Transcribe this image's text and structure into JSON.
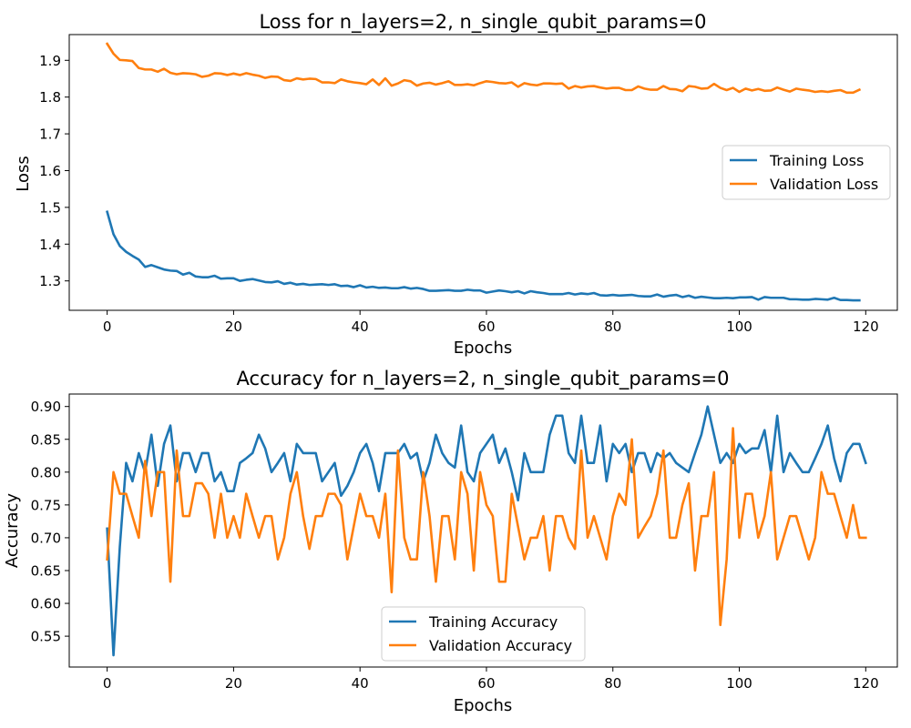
{
  "chart_data": [
    {
      "type": "line",
      "title": "Loss for n_layers=2, n_single_qubit_params=0",
      "xlabel": "Epochs",
      "ylabel": "Loss",
      "xlim": [
        -6,
        125
      ],
      "ylim": [
        1.22,
        1.97
      ],
      "xticks": [
        0,
        20,
        40,
        60,
        80,
        100,
        120
      ],
      "yticks": [
        1.3,
        1.4,
        1.5,
        1.6,
        1.7,
        1.8,
        1.9
      ],
      "ytick_labels": [
        "1.3",
        "1.4",
        "1.5",
        "1.6",
        "1.7",
        "1.8",
        "1.9"
      ],
      "legend_position": "center-right",
      "grid": false,
      "series": [
        {
          "name": "Training Loss",
          "color": "#1f77b4",
          "values": [
            1.488,
            1.427,
            1.395,
            1.379,
            1.368,
            1.358,
            1.338,
            1.343,
            1.337,
            1.331,
            1.328,
            1.327,
            1.317,
            1.322,
            1.312,
            1.31,
            1.31,
            1.314,
            1.306,
            1.307,
            1.307,
            1.3,
            1.303,
            1.305,
            1.301,
            1.297,
            1.296,
            1.299,
            1.292,
            1.295,
            1.29,
            1.292,
            1.289,
            1.29,
            1.291,
            1.289,
            1.291,
            1.286,
            1.287,
            1.283,
            1.288,
            1.282,
            1.284,
            1.281,
            1.282,
            1.28,
            1.28,
            1.283,
            1.279,
            1.281,
            1.278,
            1.273,
            1.273,
            1.274,
            1.275,
            1.273,
            1.273,
            1.276,
            1.274,
            1.274,
            1.268,
            1.271,
            1.274,
            1.272,
            1.269,
            1.272,
            1.266,
            1.272,
            1.269,
            1.267,
            1.264,
            1.264,
            1.264,
            1.267,
            1.263,
            1.266,
            1.264,
            1.267,
            1.261,
            1.26,
            1.262,
            1.26,
            1.261,
            1.262,
            1.259,
            1.258,
            1.258,
            1.263,
            1.257,
            1.26,
            1.262,
            1.256,
            1.26,
            1.254,
            1.257,
            1.255,
            1.253,
            1.253,
            1.254,
            1.253,
            1.255,
            1.255,
            1.256,
            1.249,
            1.256,
            1.254,
            1.254,
            1.254,
            1.25,
            1.25,
            1.249,
            1.249,
            1.251,
            1.25,
            1.249,
            1.254,
            1.248,
            1.248,
            1.247,
            1.247
          ]
        },
        {
          "name": "Validation Loss",
          "color": "#ff7f0e",
          "values": [
            1.945,
            1.918,
            1.901,
            1.9,
            1.898,
            1.879,
            1.875,
            1.875,
            1.869,
            1.877,
            1.866,
            1.862,
            1.865,
            1.864,
            1.862,
            1.855,
            1.858,
            1.865,
            1.864,
            1.86,
            1.864,
            1.86,
            1.865,
            1.861,
            1.858,
            1.852,
            1.856,
            1.855,
            1.846,
            1.844,
            1.851,
            1.848,
            1.85,
            1.849,
            1.84,
            1.84,
            1.838,
            1.848,
            1.843,
            1.84,
            1.838,
            1.835,
            1.848,
            1.833,
            1.851,
            1.831,
            1.837,
            1.846,
            1.843,
            1.831,
            1.837,
            1.839,
            1.834,
            1.838,
            1.843,
            1.833,
            1.833,
            1.835,
            1.832,
            1.838,
            1.843,
            1.841,
            1.838,
            1.837,
            1.84,
            1.828,
            1.838,
            1.834,
            1.832,
            1.837,
            1.837,
            1.836,
            1.837,
            1.823,
            1.83,
            1.826,
            1.829,
            1.83,
            1.826,
            1.823,
            1.825,
            1.825,
            1.819,
            1.819,
            1.829,
            1.823,
            1.82,
            1.82,
            1.83,
            1.822,
            1.821,
            1.816,
            1.83,
            1.828,
            1.823,
            1.824,
            1.836,
            1.825,
            1.819,
            1.825,
            1.814,
            1.823,
            1.818,
            1.822,
            1.817,
            1.818,
            1.826,
            1.82,
            1.815,
            1.823,
            1.82,
            1.818,
            1.814,
            1.816,
            1.814,
            1.817,
            1.819,
            1.812,
            1.812,
            1.82
          ]
        }
      ]
    },
    {
      "type": "line",
      "title": "Accuracy for n_layers=2, n_single_qubit_params=0",
      "xlabel": "Epochs",
      "ylabel": "Accuracy",
      "xlim": [
        -6,
        125
      ],
      "ylim": [
        0.503,
        0.919
      ],
      "xticks": [
        0,
        20,
        40,
        60,
        80,
        100,
        120
      ],
      "yticks": [
        0.55,
        0.6,
        0.65,
        0.7,
        0.75,
        0.8,
        0.85,
        0.9
      ],
      "ytick_labels": [
        "0.55",
        "0.60",
        "0.65",
        "0.70",
        "0.75",
        "0.80",
        "0.85",
        "0.90"
      ],
      "legend_position": "lower-center",
      "grid": false,
      "series": [
        {
          "name": "Training Accuracy",
          "color": "#1f77b4",
          "values": [
            0.714,
            0.521,
            0.686,
            0.814,
            0.786,
            0.829,
            0.8,
            0.857,
            0.779,
            0.843,
            0.871,
            0.786,
            0.829,
            0.829,
            0.8,
            0.829,
            0.829,
            0.786,
            0.8,
            0.771,
            0.771,
            0.814,
            0.821,
            0.829,
            0.857,
            0.836,
            0.8,
            0.814,
            0.829,
            0.786,
            0.843,
            0.829,
            0.829,
            0.829,
            0.786,
            0.8,
            0.814,
            0.764,
            0.779,
            0.8,
            0.829,
            0.843,
            0.814,
            0.771,
            0.829,
            0.829,
            0.829,
            0.843,
            0.821,
            0.829,
            0.786,
            0.814,
            0.857,
            0.829,
            0.814,
            0.807,
            0.871,
            0.8,
            0.786,
            0.829,
            0.843,
            0.857,
            0.814,
            0.836,
            0.8,
            0.757,
            0.829,
            0.8,
            0.8,
            0.8,
            0.857,
            0.886,
            0.886,
            0.829,
            0.814,
            0.886,
            0.814,
            0.814,
            0.871,
            0.786,
            0.843,
            0.829,
            0.843,
            0.8,
            0.829,
            0.829,
            0.8,
            0.829,
            0.821,
            0.829,
            0.814,
            0.807,
            0.8,
            0.829,
            0.857,
            0.9,
            0.857,
            0.814,
            0.829,
            0.814,
            0.843,
            0.829,
            0.836,
            0.836,
            0.864,
            0.8,
            0.886,
            0.8,
            0.829,
            0.814,
            0.8,
            0.8,
            0.821,
            0.843,
            0.871,
            0.821,
            0.786,
            0.829,
            0.843,
            0.843,
            0.814
          ]
        },
        {
          "name": "Validation Accuracy",
          "color": "#ff7f0e",
          "values": [
            0.667,
            0.8,
            0.767,
            0.767,
            0.733,
            0.7,
            0.817,
            0.733,
            0.8,
            0.8,
            0.633,
            0.833,
            0.733,
            0.733,
            0.783,
            0.783,
            0.767,
            0.7,
            0.767,
            0.7,
            0.733,
            0.7,
            0.767,
            0.733,
            0.7,
            0.733,
            0.733,
            0.667,
            0.7,
            0.767,
            0.8,
            0.733,
            0.683,
            0.733,
            0.733,
            0.767,
            0.767,
            0.75,
            0.667,
            0.717,
            0.767,
            0.733,
            0.733,
            0.7,
            0.767,
            0.617,
            0.833,
            0.7,
            0.667,
            0.667,
            0.8,
            0.733,
            0.633,
            0.733,
            0.733,
            0.667,
            0.8,
            0.767,
            0.65,
            0.8,
            0.75,
            0.733,
            0.633,
            0.633,
            0.767,
            0.717,
            0.667,
            0.7,
            0.7,
            0.733,
            0.65,
            0.733,
            0.733,
            0.7,
            0.683,
            0.833,
            0.7,
            0.733,
            0.7,
            0.667,
            0.733,
            0.767,
            0.75,
            0.85,
            0.7,
            0.717,
            0.733,
            0.767,
            0.833,
            0.7,
            0.7,
            0.75,
            0.783,
            0.65,
            0.733,
            0.733,
            0.8,
            0.567,
            0.667,
            0.867,
            0.7,
            0.767,
            0.767,
            0.7,
            0.733,
            0.8,
            0.667,
            0.7,
            0.733,
            0.733,
            0.7,
            0.667,
            0.7,
            0.8,
            0.767,
            0.767,
            0.733,
            0.7,
            0.75,
            0.7,
            0.7
          ]
        }
      ]
    }
  ]
}
